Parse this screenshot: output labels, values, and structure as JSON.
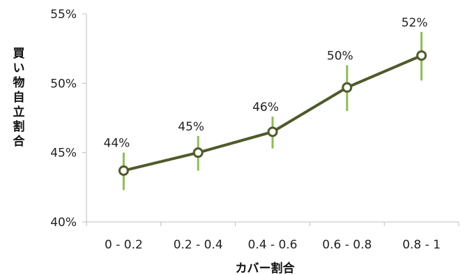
{
  "chart_data": {
    "type": "line",
    "title": "",
    "xlabel": "カバー割合",
    "ylabel": "買い物自立割合",
    "categories": [
      "0 - 0.2",
      "0.2 - 0.4",
      "0.4 - 0.6",
      "0.6 - 0.8",
      "0.8 - 1"
    ],
    "series": [
      {
        "values": [
          43.7,
          45.0,
          46.5,
          49.7,
          52.0
        ],
        "labels": [
          "44%",
          "45%",
          "46%",
          "50%",
          "52%"
        ],
        "error_low": [
          42.3,
          43.7,
          45.3,
          48.0,
          50.2
        ],
        "error_high": [
          45.0,
          46.2,
          47.6,
          51.3,
          53.7
        ]
      }
    ],
    "ylim": [
      40,
      55
    ],
    "yticks": [
      40,
      45,
      50,
      55
    ],
    "ytick_labels": [
      "40%",
      "45%",
      "50%",
      "55%"
    ],
    "grid": false,
    "legend": "none",
    "colors": {
      "line": "#4f5a2a",
      "marker_fill": "#ffffff",
      "error_bar": "#8fbc5a",
      "axis": "#bfbfbf"
    }
  }
}
